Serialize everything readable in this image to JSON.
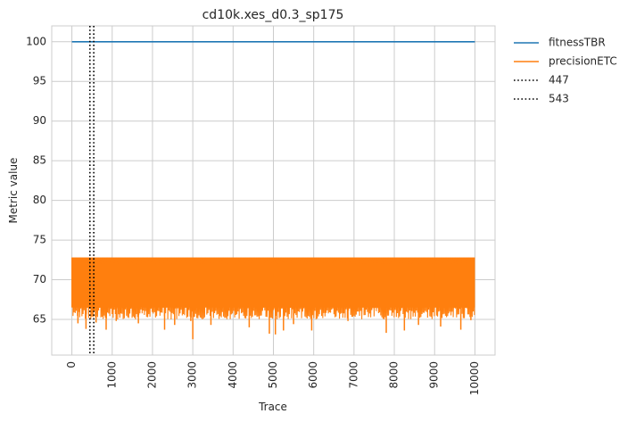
{
  "chart_data": {
    "type": "line",
    "title": "cd10k.xes_d0.3_sp175",
    "xlabel": "Trace",
    "ylabel": "Metric value",
    "xlim": [
      -500,
      10500
    ],
    "ylim": [
      60.5,
      102
    ],
    "xticks": [
      "0",
      "1000",
      "2000",
      "3000",
      "4000",
      "5000",
      "6000",
      "7000",
      "8000",
      "9000",
      "10000"
    ],
    "yticks": [
      "65",
      "70",
      "75",
      "80",
      "85",
      "90",
      "95",
      "100"
    ],
    "grid": true,
    "legend_position": "outside-top-right",
    "series": [
      {
        "name": "fitnessTBR",
        "color": "#1f77b4",
        "style": "solid",
        "x": [
          0,
          10000
        ],
        "y": [
          100,
          100
        ]
      },
      {
        "name": "precisionETC",
        "color": "#ff7f0e",
        "style": "solid",
        "x_range": [
          0,
          10000
        ],
        "upper": 72.8,
        "band_low": 66.5,
        "typical_range": [
          65,
          72.8
        ],
        "dips": [
          {
            "x": 150,
            "y": 64.5
          },
          {
            "x": 350,
            "y": 63.8
          },
          {
            "x": 600,
            "y": 64.6
          },
          {
            "x": 850,
            "y": 63.7
          },
          {
            "x": 1100,
            "y": 64.8
          },
          {
            "x": 1650,
            "y": 64.5
          },
          {
            "x": 2300,
            "y": 63.7
          },
          {
            "x": 2550,
            "y": 64.3
          },
          {
            "x": 2950,
            "y": 64.8
          },
          {
            "x": 3000,
            "y": 62.5
          },
          {
            "x": 3450,
            "y": 64.3
          },
          {
            "x": 4400,
            "y": 64.0
          },
          {
            "x": 4900,
            "y": 63.2
          },
          {
            "x": 5050,
            "y": 63.1
          },
          {
            "x": 5250,
            "y": 63.6
          },
          {
            "x": 5500,
            "y": 64.4
          },
          {
            "x": 5950,
            "y": 63.6
          },
          {
            "x": 6850,
            "y": 64.8
          },
          {
            "x": 7800,
            "y": 63.3
          },
          {
            "x": 8250,
            "y": 63.6
          },
          {
            "x": 8600,
            "y": 64.3
          },
          {
            "x": 9150,
            "y": 64.1
          },
          {
            "x": 9650,
            "y": 63.7
          },
          {
            "x": 9900,
            "y": 64.9
          }
        ]
      }
    ],
    "vlines": [
      {
        "name": "447",
        "x": 447,
        "color": "#000000",
        "style": "dotted"
      },
      {
        "name": "543",
        "x": 543,
        "color": "#000000",
        "style": "dotted"
      }
    ]
  }
}
